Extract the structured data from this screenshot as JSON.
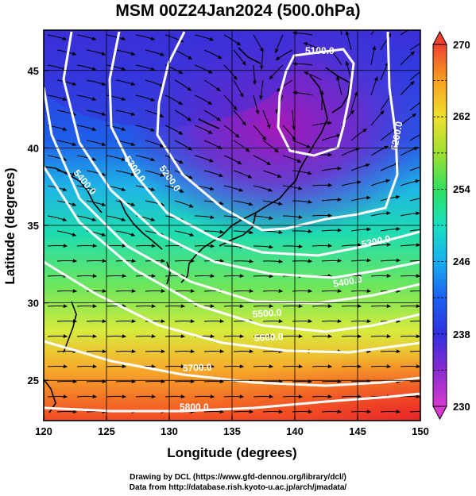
{
  "title": "MSM 00Z24Jan2024 (500.0hPa)",
  "axes": {
    "xlabel": "Longitude (degrees)",
    "ylabel": "Latitude  (degrees)",
    "xticks": [
      "120",
      "125",
      "130",
      "135",
      "140",
      "145",
      "150"
    ],
    "yticks": [
      "25",
      "30",
      "35",
      "40",
      "45"
    ],
    "xlim": [
      120,
      150
    ],
    "ylim": [
      22.4,
      47.6
    ]
  },
  "colorbar": {
    "min_label": "230",
    "max_label": "270",
    "labels": [
      "262",
      "254",
      "246",
      "238"
    ],
    "min": 230,
    "max": 270
  },
  "contours": {
    "labels": [
      "5100.0",
      "5200.0",
      "5300.0",
      "5400.0",
      "5500.0",
      "5600.0",
      "5700.0",
      "5800.0"
    ]
  },
  "credits": {
    "line1": "Drawing by DCL (https://www.gfd-dennou.org/library/dcl/)",
    "line2": "Data from http://database.rish.kyoto-u.ac.jp/arch/jmadata/"
  }
}
